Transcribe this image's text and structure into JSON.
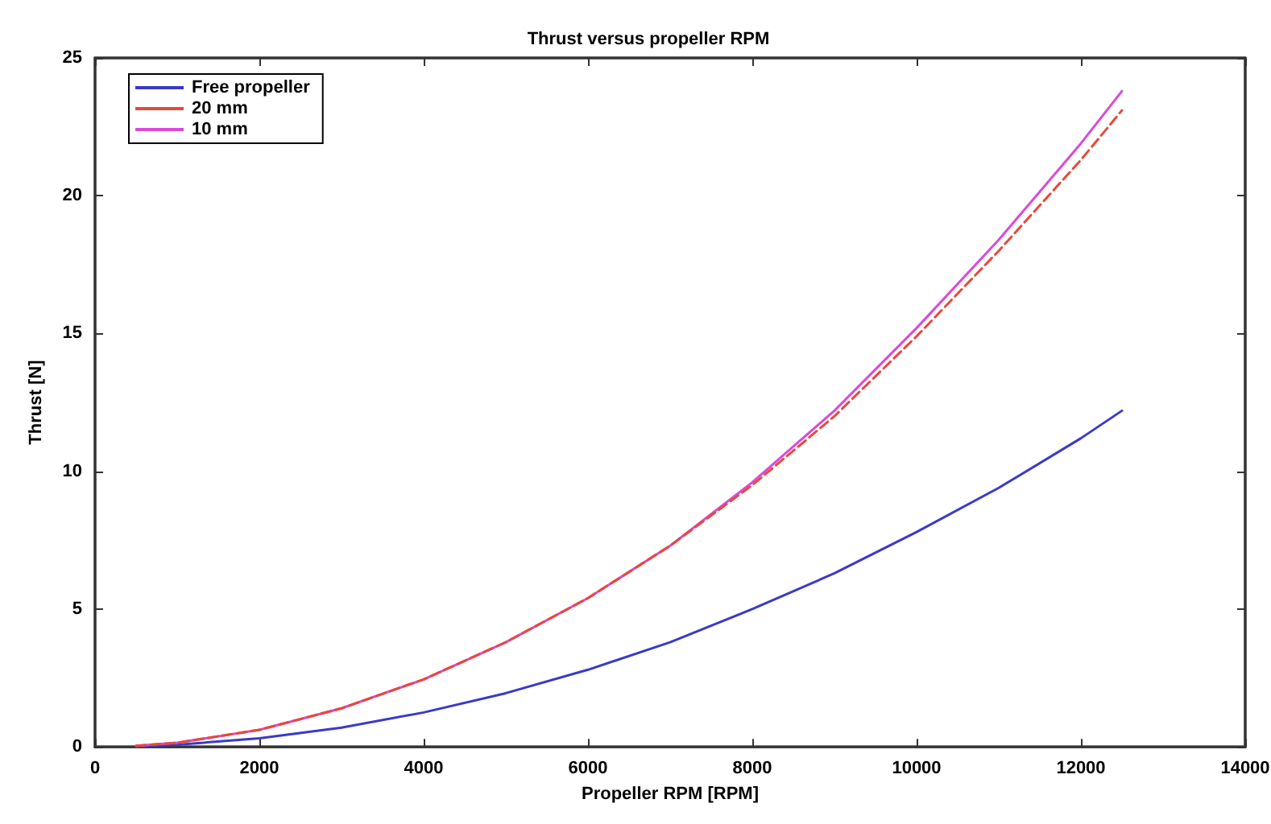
{
  "chart_data": {
    "type": "line",
    "title": "Thrust versus propeller RPM",
    "xlabel": "Propeller RPM [RPM]",
    "ylabel": "Thrust [N]",
    "x": [
      500,
      1000,
      2000,
      3000,
      4000,
      5000,
      6000,
      7000,
      8000,
      9000,
      10000,
      11000,
      12000,
      12500
    ],
    "series": [
      {
        "name": "Free propeller",
        "color": "#3a3ac8",
        "line_style": "solid",
        "values": [
          0.02,
          0.08,
          0.31,
          0.7,
          1.25,
          1.95,
          2.8,
          3.8,
          5.0,
          6.3,
          7.8,
          9.4,
          11.2,
          12.2
        ]
      },
      {
        "name": "20 mm",
        "color": "#e8483a",
        "line_style": "dashed",
        "values": [
          0.04,
          0.15,
          0.62,
          1.4,
          2.45,
          3.8,
          5.4,
          7.3,
          9.5,
          12.0,
          14.9,
          18.0,
          21.3,
          23.1
        ]
      },
      {
        "name": "10 mm",
        "color": "#d94ad9",
        "line_style": "solid",
        "values": [
          0.04,
          0.15,
          0.62,
          1.4,
          2.45,
          3.8,
          5.4,
          7.3,
          9.6,
          12.2,
          15.2,
          18.4,
          21.9,
          23.8
        ]
      }
    ],
    "xlim": [
      0,
      14000
    ],
    "xticks": [
      0,
      2000,
      4000,
      6000,
      8000,
      10000,
      12000,
      14000
    ],
    "ylim": [
      0,
      25
    ],
    "yticks": [
      0,
      5,
      10,
      15,
      20,
      25
    ],
    "grid": false,
    "legend": "top left",
    "marker": "none"
  }
}
